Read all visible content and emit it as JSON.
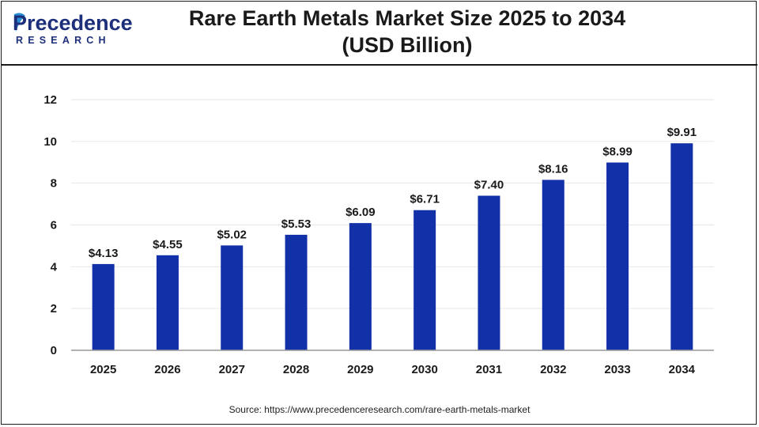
{
  "header": {
    "logo_word": "Precedence",
    "logo_sub": "RESEARCH",
    "title_line1": "Rare Earth Metals Market Size 2025 to 2034",
    "title_line2": "(USD Billion)"
  },
  "source_text": "Source: https://www.precedenceresearch.com/rare-earth-metals-market",
  "colors": {
    "bar": "#1230a8",
    "brand": "#1d2f7a",
    "grid": "#e6e6e6",
    "axis": "#999999"
  },
  "chart_data": {
    "type": "bar",
    "title": "Rare Earth Metals Market Size 2025 to 2034 (USD Billion)",
    "categories": [
      "2025",
      "2026",
      "2027",
      "2028",
      "2029",
      "2030",
      "2031",
      "2032",
      "2033",
      "2034"
    ],
    "values": [
      4.13,
      4.55,
      5.02,
      5.53,
      6.09,
      6.71,
      7.4,
      8.16,
      8.99,
      9.91
    ],
    "data_labels": [
      "$4.13",
      "$4.55",
      "$5.02",
      "$5.53",
      "$6.09",
      "$6.71",
      "$7.40",
      "$8.16",
      "$8.99",
      "$9.91"
    ],
    "y_ticks": [
      "0",
      "2",
      "4",
      "6",
      "8",
      "10",
      "12"
    ],
    "ylim": [
      0,
      12
    ],
    "xlabel": "",
    "ylabel": "",
    "grid": true,
    "legend": "none"
  }
}
